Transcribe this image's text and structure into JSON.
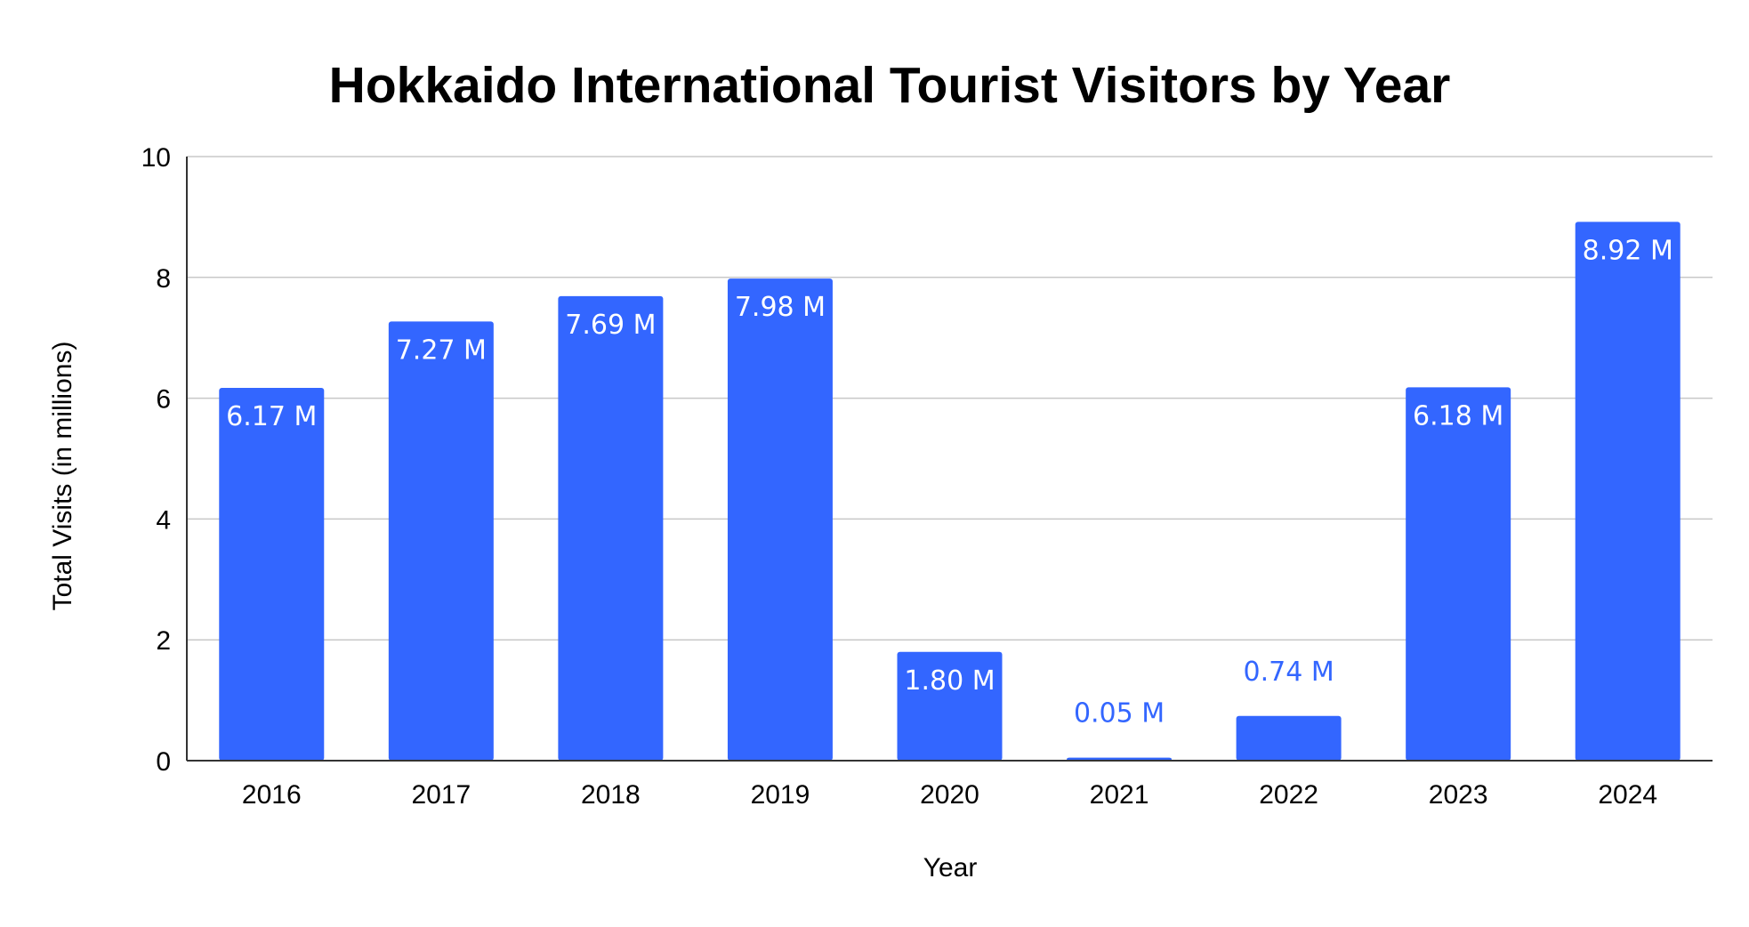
{
  "chart_data": {
    "type": "bar",
    "title": "Hokkaido International Tourist Visitors by Year",
    "xlabel": "Year",
    "ylabel": "Total Visits (in millions)",
    "categories": [
      "2016",
      "2017",
      "2018",
      "2019",
      "2020",
      "2021",
      "2022",
      "2023",
      "2024"
    ],
    "values": [
      6.17,
      7.27,
      7.69,
      7.98,
      1.8,
      0.05,
      0.74,
      6.18,
      8.92
    ],
    "data_labels": [
      "6.17 M",
      "7.27 M",
      "7.69 M",
      "7.98 M",
      "1.80 M",
      "0.05 M",
      "0.74 M",
      "6.18 M",
      "8.92 M"
    ],
    "ylim": [
      0,
      10
    ],
    "yticks": [
      0,
      2,
      4,
      6,
      8,
      10
    ],
    "grid": true,
    "legend": "none",
    "colors": {
      "bar": "#3366ff",
      "label_inside": "#ffffff",
      "label_outside": "#3366ff"
    }
  }
}
